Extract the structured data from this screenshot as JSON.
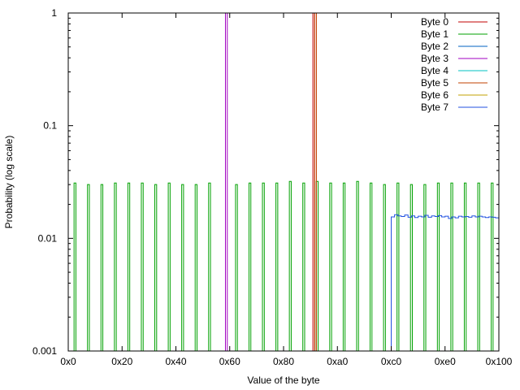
{
  "chart_data": {
    "type": "line",
    "title": "",
    "xlabel": "Value of the byte",
    "ylabel": "Probability (log scale)",
    "xlim": [
      0,
      256
    ],
    "ylim": [
      0.001,
      1
    ],
    "yscale": "log",
    "grid": false,
    "legend_position": "top-right",
    "x_ticks": [
      {
        "value": 0,
        "label": "0x0"
      },
      {
        "value": 32,
        "label": "0x20"
      },
      {
        "value": 64,
        "label": "0x40"
      },
      {
        "value": 96,
        "label": "0x60"
      },
      {
        "value": 128,
        "label": "0x80"
      },
      {
        "value": 160,
        "label": "0xa0"
      },
      {
        "value": 192,
        "label": "0xc0"
      },
      {
        "value": 224,
        "label": "0xe0"
      },
      {
        "value": 256,
        "label": "0x100"
      }
    ],
    "y_ticks": [
      {
        "value": 0.001,
        "label": "0.001"
      },
      {
        "value": 0.01,
        "label": "0.01"
      },
      {
        "value": 0.1,
        "label": "0.1"
      },
      {
        "value": 1,
        "label": "1"
      }
    ],
    "series": [
      {
        "name": "Byte 0",
        "color": "#c00000",
        "kind": "spikes",
        "points": [
          [
            146,
            1.0
          ]
        ]
      },
      {
        "name": "Byte 1",
        "color": "#00a000",
        "kind": "spikes",
        "points": [
          [
            4,
            0.031
          ],
          [
            12,
            0.03
          ],
          [
            20,
            0.03
          ],
          [
            28,
            0.031
          ],
          [
            36,
            0.031
          ],
          [
            44,
            0.031
          ],
          [
            52,
            0.03
          ],
          [
            60,
            0.031
          ],
          [
            68,
            0.03
          ],
          [
            76,
            0.03
          ],
          [
            84,
            0.031
          ],
          [
            100,
            0.03
          ],
          [
            108,
            0.031
          ],
          [
            116,
            0.031
          ],
          [
            124,
            0.031
          ],
          [
            132,
            0.032
          ],
          [
            140,
            0.031
          ],
          [
            148,
            0.032
          ],
          [
            156,
            0.031
          ],
          [
            164,
            0.031
          ],
          [
            172,
            0.032
          ],
          [
            180,
            0.031
          ],
          [
            188,
            0.03
          ],
          [
            196,
            0.031
          ],
          [
            204,
            0.03
          ],
          [
            212,
            0.03
          ],
          [
            220,
            0.031
          ],
          [
            228,
            0.031
          ],
          [
            236,
            0.031
          ],
          [
            244,
            0.031
          ],
          [
            252,
            0.031
          ]
        ]
      },
      {
        "name": "Byte 2",
        "color": "#0060c0",
        "kind": "spikes",
        "points": []
      },
      {
        "name": "Byte 3",
        "color": "#a000c0",
        "kind": "spikes",
        "points": [
          [
            94,
            1.0
          ]
        ]
      },
      {
        "name": "Byte 4",
        "color": "#00c0c0",
        "kind": "spikes",
        "points": []
      },
      {
        "name": "Byte 5",
        "color": "#c04000",
        "kind": "spikes",
        "points": [
          [
            147,
            1.0
          ]
        ]
      },
      {
        "name": "Byte 6",
        "color": "#c0a000",
        "kind": "spikes",
        "points": []
      },
      {
        "name": "Byte 7",
        "color": "#2050e0",
        "kind": "step",
        "points": [
          [
            192,
            0.0155
          ],
          [
            194,
            0.0162
          ],
          [
            196,
            0.0158
          ],
          [
            198,
            0.0156
          ],
          [
            200,
            0.0161
          ],
          [
            202,
            0.0154
          ],
          [
            204,
            0.0158
          ],
          [
            206,
            0.0153
          ],
          [
            208,
            0.0157
          ],
          [
            210,
            0.0155
          ],
          [
            212,
            0.016
          ],
          [
            214,
            0.0154
          ],
          [
            216,
            0.0158
          ],
          [
            218,
            0.0156
          ],
          [
            220,
            0.0159
          ],
          [
            222,
            0.0155
          ],
          [
            224,
            0.0157
          ],
          [
            226,
            0.015
          ],
          [
            228,
            0.0155
          ],
          [
            230,
            0.0152
          ],
          [
            232,
            0.0157
          ],
          [
            234,
            0.0155
          ],
          [
            236,
            0.0156
          ],
          [
            238,
            0.0154
          ],
          [
            240,
            0.0158
          ],
          [
            242,
            0.0155
          ],
          [
            244,
            0.0157
          ],
          [
            246,
            0.0155
          ],
          [
            248,
            0.0153
          ],
          [
            250,
            0.0155
          ],
          [
            252,
            0.0154
          ],
          [
            254,
            0.0152
          ],
          [
            256,
            0.0152
          ]
        ]
      }
    ]
  }
}
